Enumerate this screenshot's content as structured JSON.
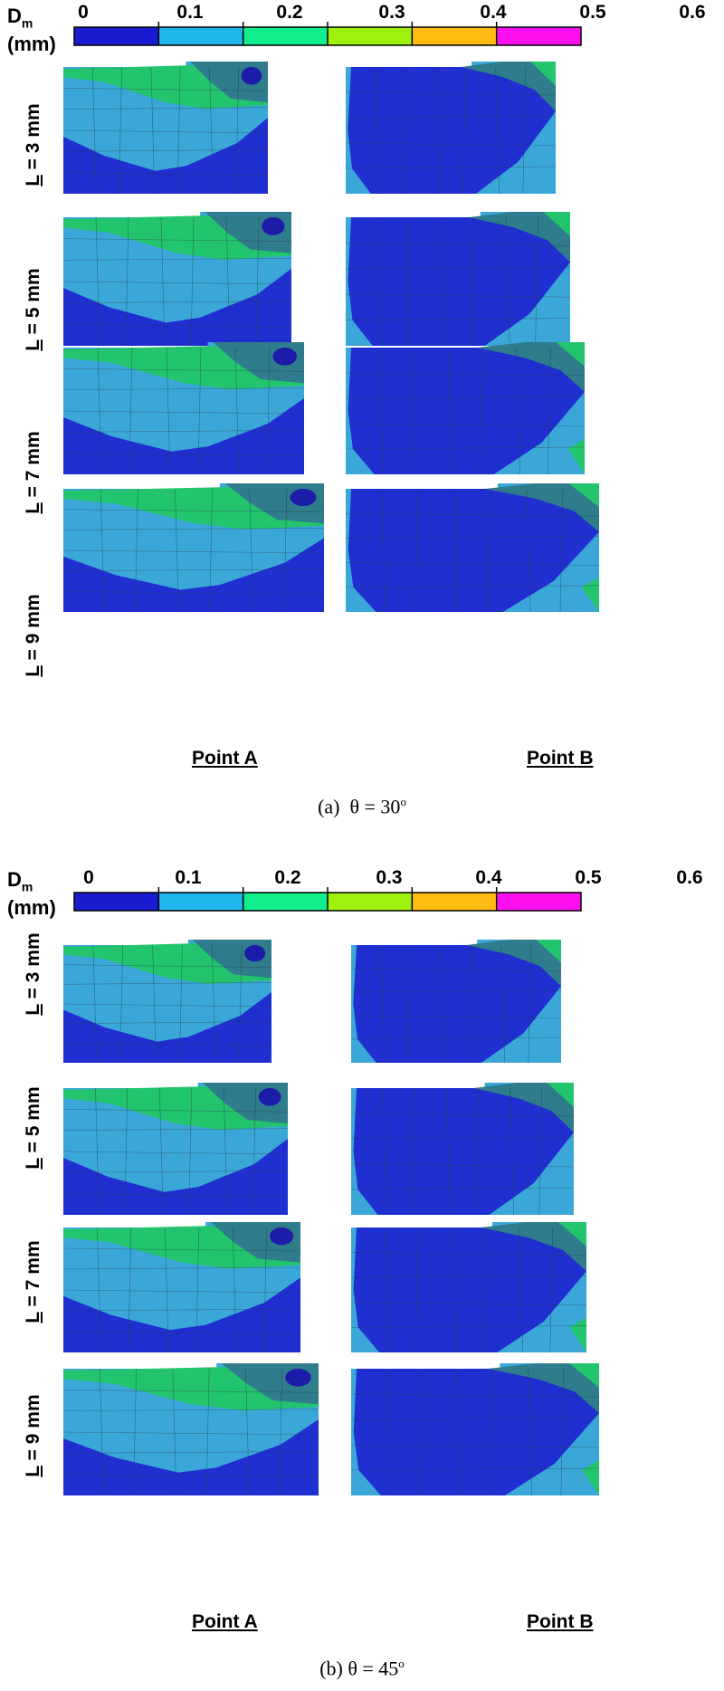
{
  "legend": {
    "title_main": "D",
    "title_sub": "m",
    "unit": "(mm)",
    "ticks": [
      "0",
      "0.1",
      "0.2",
      "0.3",
      "0.4",
      "0.5",
      "0.6"
    ],
    "colors": [
      "#1a1ad0",
      "#1fb6ee",
      "#12ee8c",
      "#9ef00e",
      "#ffbb12",
      "#ff10ee"
    ]
  },
  "palette": {
    "dark_blue": "#1f2fd0",
    "light_blue": "#3aa7d8",
    "green": "#22c46e",
    "teal": "#2e7c8c",
    "navy": "#1c1ca8",
    "mesh": "#2a3a4a"
  },
  "panels": [
    {
      "caption_prefix": "(a)",
      "caption_symbol": "θ = 30",
      "caption_sup": "o",
      "rows": [
        {
          "pre": "L",
          "rest": " = 3 mm"
        },
        {
          "pre": "L",
          "rest": " = 5 mm"
        },
        {
          "pre": "L",
          "rest": " = 7 mm"
        },
        {
          "pre": "L",
          "rest": " = 9 mm"
        }
      ],
      "point_a": "Point A",
      "point_b": "Point B"
    },
    {
      "caption_prefix": "(b)",
      "caption_symbol": "θ = 45",
      "caption_sup": "o",
      "rows": [
        {
          "pre": "L",
          "rest": " = 3 mm"
        },
        {
          "pre": "L",
          "rest": " = 5 mm"
        },
        {
          "pre": "L",
          "rest": " = 7 mm"
        },
        {
          "pre": "L",
          "rest": " = 9 mm"
        }
      ],
      "point_a": "Point A",
      "point_b": "Point B"
    }
  ]
}
